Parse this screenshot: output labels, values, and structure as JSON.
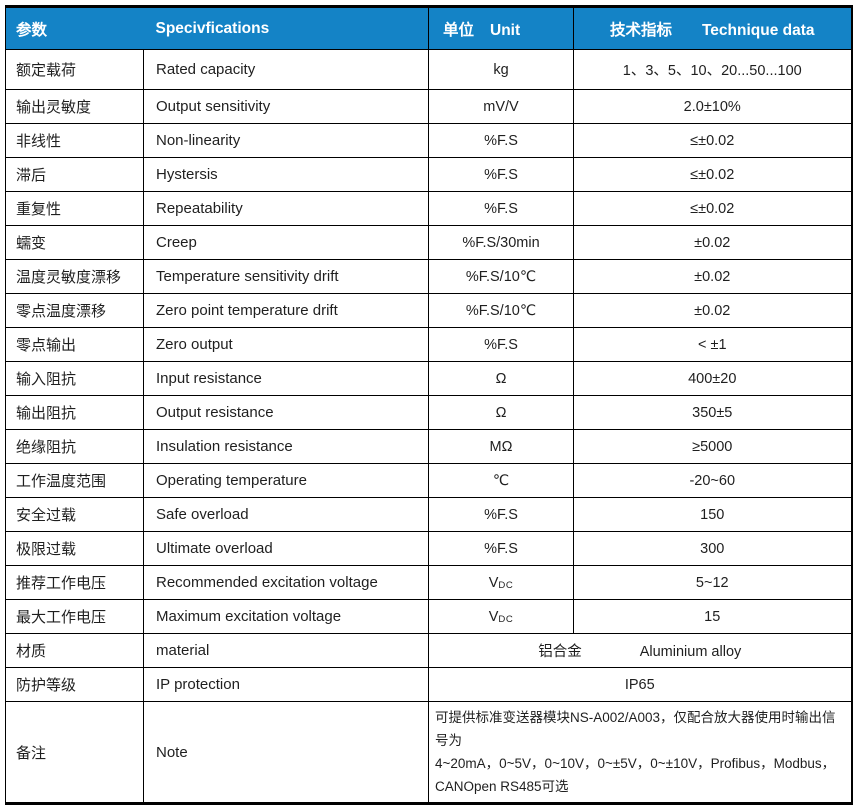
{
  "colors": {
    "header_bg": "#1483c6",
    "header_text": "#ffffff",
    "border": "#000000",
    "body_text": "#1f1f1f"
  },
  "table": {
    "header": {
      "param_zh": "参数",
      "spec_en": "Specivfications",
      "unit_zh": "单位",
      "unit_en": "Unit",
      "data_zh": "技术指标",
      "data_en": "Technique data"
    },
    "rows": [
      {
        "type": "tall",
        "param": "额定载荷",
        "spec": "Rated capacity",
        "unit": "kg",
        "value": "1、3、5、10、20...50...100"
      },
      {
        "type": "normal",
        "param": "输出灵敏度",
        "spec": "Output sensitivity",
        "unit": "mV/V",
        "value": "2.0±10%"
      },
      {
        "type": "normal",
        "param": "非线性",
        "spec": "Non-linearity",
        "unit": "%F.S",
        "value": "≤±0.02"
      },
      {
        "type": "normal",
        "param": "滞后",
        "spec": "Hystersis",
        "unit": "%F.S",
        "value": "≤±0.02"
      },
      {
        "type": "normal",
        "param": "重复性",
        "spec": "Repeatability",
        "unit": "%F.S",
        "value": "≤±0.02"
      },
      {
        "type": "normal",
        "param": "蠕变",
        "spec": "Creep",
        "unit": "%F.S/30min",
        "value": "±0.02"
      },
      {
        "type": "normal",
        "param": "温度灵敏度漂移",
        "spec": "Temperature sensitivity drift",
        "unit": "%F.S/10℃",
        "value": "±0.02"
      },
      {
        "type": "normal",
        "param": "零点温度漂移",
        "spec": "Zero point temperature drift",
        "unit": "%F.S/10℃",
        "value": "±0.02"
      },
      {
        "type": "normal",
        "param": "零点输出",
        "spec": "Zero output",
        "unit": "%F.S",
        "value": "< ±1"
      },
      {
        "type": "normal",
        "param": "输入阻抗",
        "spec": "Input resistance",
        "unit": "Ω",
        "value": "400±20"
      },
      {
        "type": "normal",
        "param": "输出阻抗",
        "spec": "Output resistance",
        "unit": "Ω",
        "value": "350±5"
      },
      {
        "type": "normal",
        "param": "绝缘阻抗",
        "spec": "Insulation resistance",
        "unit": "MΩ",
        "value": "≥5000"
      },
      {
        "type": "normal",
        "param": "工作温度范围",
        "spec": "Operating temperature",
        "unit": "℃",
        "value": "-20~60"
      },
      {
        "type": "normal",
        "param": "安全过载",
        "spec": "Safe overload",
        "unit": "%F.S",
        "value": "150"
      },
      {
        "type": "normal",
        "param": "极限过载",
        "spec": "Ultimate overload",
        "unit": "%F.S",
        "value": "300"
      },
      {
        "type": "normal",
        "param": "推荐工作电压",
        "spec": "Recommended excitation voltage",
        "unit": "V",
        "unit_sub": "DC",
        "value": "5~12"
      },
      {
        "type": "normal",
        "param": "最大工作电压",
        "spec": "Maximum excitation voltage",
        "unit": "V",
        "unit_sub": "DC",
        "value": "15"
      },
      {
        "type": "merged",
        "param": "材质",
        "spec": "material",
        "value_zh": "铝合金",
        "value_en": "Aluminium alloy"
      },
      {
        "type": "merged",
        "param": "防护等级",
        "spec": "IP protection",
        "value": "IP65"
      },
      {
        "type": "note",
        "param": "备注",
        "spec": "Note",
        "note_lines": [
          "可提供标准变送器模块NS-A002/A003，仅配合放大器使用时输出信号为",
          "4~20mA，0~5V，0~10V，0~±5V，0~±10V，Profibus，Modbus，",
          "CANOpen  RS485可选"
        ]
      }
    ]
  }
}
